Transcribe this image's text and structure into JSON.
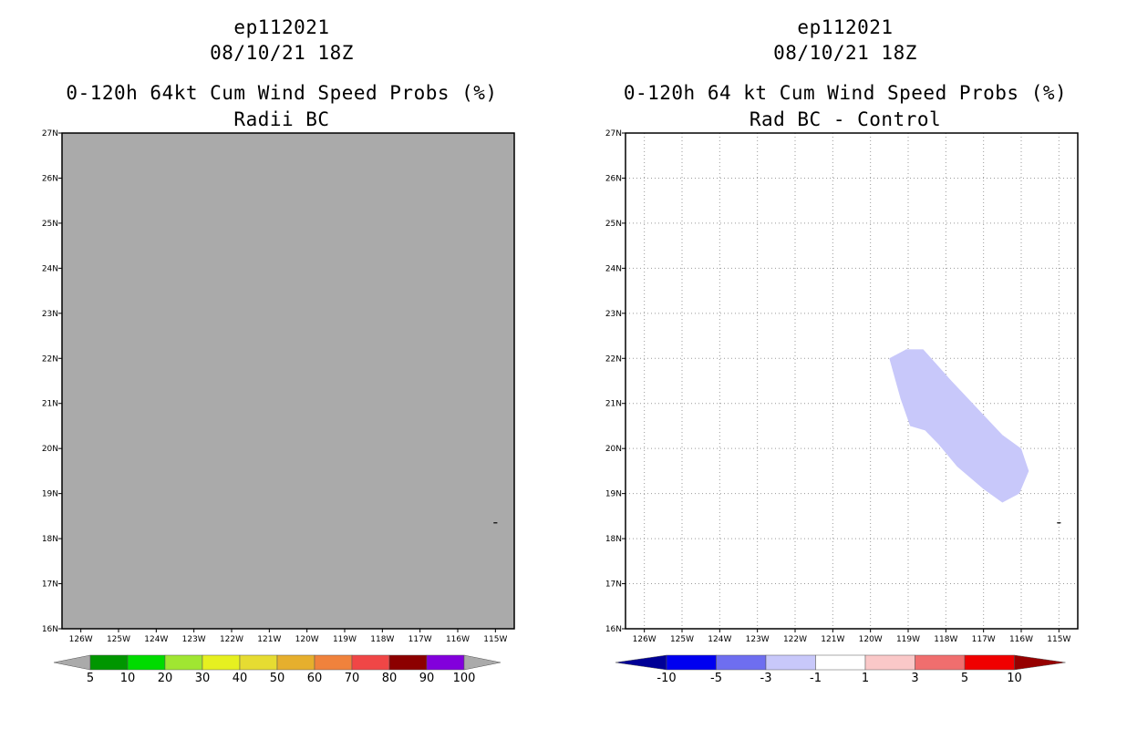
{
  "colors": {
    "missing": "#aaaaaa",
    "grid": "#999999",
    "diff_region": "#c8c8fa"
  },
  "chart_data": [
    {
      "type": "heatmap",
      "storm_id": "ep112021",
      "datetime": "08/10/21 18Z",
      "title": "0-120h 64kt Cum Wind Speed Probs (%)",
      "subtitle": "Radii BC",
      "x_ticks": [
        "126W",
        "125W",
        "124W",
        "123W",
        "122W",
        "121W",
        "120W",
        "119W",
        "118W",
        "117W",
        "116W",
        "115W"
      ],
      "y_ticks": [
        "27N",
        "26N",
        "25N",
        "24N",
        "23N",
        "22N",
        "21N",
        "20N",
        "19N",
        "18N",
        "17N",
        "16N"
      ],
      "xlim": [
        -126.5,
        -114.5
      ],
      "ylim": [
        16,
        27
      ],
      "field": "undefined (all grey)",
      "colorbar": {
        "labels": [
          "5",
          "10",
          "20",
          "30",
          "40",
          "50",
          "60",
          "70",
          "80",
          "90",
          "100"
        ],
        "colors": [
          "#aaaaaa",
          "#009600",
          "#00dc00",
          "#a0e632",
          "#e6f020",
          "#e6dc32",
          "#e6af2d",
          "#f0823c",
          "#f04646",
          "#8c0000",
          "#8200dc",
          "#aaaaaa"
        ]
      }
    },
    {
      "type": "heatmap",
      "storm_id": "ep112021",
      "datetime": "08/10/21 18Z",
      "title": "0-120h 64 kt Cum Wind Speed Probs (%)",
      "subtitle": "Rad BC - Control",
      "x_ticks": [
        "126W",
        "125W",
        "124W",
        "123W",
        "122W",
        "121W",
        "120W",
        "119W",
        "118W",
        "117W",
        "116W",
        "115W"
      ],
      "y_ticks": [
        "27N",
        "26N",
        "25N",
        "24N",
        "23N",
        "22N",
        "21N",
        "20N",
        "19N",
        "18N",
        "17N",
        "16N"
      ],
      "xlim": [
        -126.5,
        -114.5
      ],
      "ylim": [
        16,
        27
      ],
      "grid": true,
      "regions": [
        {
          "value_range": "-3 to -1",
          "polygon_lonlat": [
            [
              -119.5,
              22.0
            ],
            [
              -119.05,
              22.2
            ],
            [
              -118.6,
              22.2
            ],
            [
              -117.85,
              21.5
            ],
            [
              -116.5,
              20.3
            ],
            [
              -116.0,
              20.0
            ],
            [
              -115.8,
              19.5
            ],
            [
              -116.05,
              19.0
            ],
            [
              -116.5,
              18.8
            ],
            [
              -117.0,
              19.1
            ],
            [
              -117.7,
              19.6
            ],
            [
              -118.2,
              20.1
            ],
            [
              -118.55,
              20.4
            ],
            [
              -118.95,
              20.5
            ],
            [
              -119.2,
              21.1
            ],
            [
              -119.5,
              22.0
            ]
          ]
        }
      ],
      "colorbar": {
        "labels": [
          "-10",
          "-5",
          "-3",
          "-1",
          "1",
          "3",
          "5",
          "10"
        ],
        "colors": [
          "#000096",
          "#0000f0",
          "#6e6ef0",
          "#c8c8fa",
          "#ffffff",
          "#fac8c8",
          "#f06e6e",
          "#f00000",
          "#960000"
        ]
      }
    }
  ]
}
